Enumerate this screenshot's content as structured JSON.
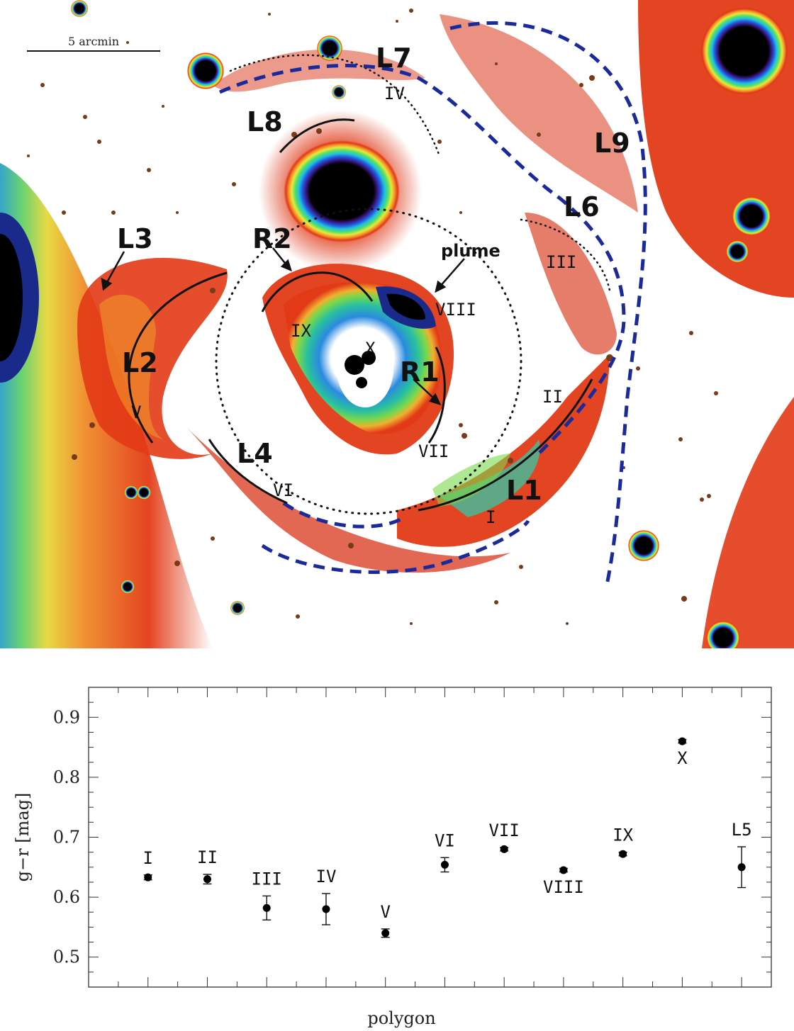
{
  "image": {
    "scalebar_label": "5 arcmin",
    "region_labels": [
      "L7",
      "L8",
      "L9",
      "L6",
      "L3",
      "R2",
      "plume",
      "L2",
      "R1",
      "L4",
      "L1"
    ],
    "polygon_labels": [
      "IV",
      "III",
      "VIII",
      "IX",
      "X",
      "II",
      "V",
      "VII",
      "VI",
      "I"
    ]
  },
  "chart_data": {
    "type": "scatter",
    "xlabel": "polygon",
    "ylabel": "g−r  [mag]",
    "ylim": [
      0.45,
      0.95
    ],
    "yticks": [
      "0.5",
      "0.6",
      "0.7",
      "0.8",
      "0.9"
    ],
    "grid": false,
    "points": [
      {
        "label": "I",
        "x": 1,
        "y": 0.633,
        "err": 0.004,
        "label_pos": "above"
      },
      {
        "label": "II",
        "x": 2,
        "y": 0.63,
        "err": 0.008,
        "label_pos": "above"
      },
      {
        "label": "III",
        "x": 3,
        "y": 0.582,
        "err": 0.02,
        "label_pos": "above"
      },
      {
        "label": "IV",
        "x": 4,
        "y": 0.58,
        "err": 0.026,
        "label_pos": "above"
      },
      {
        "label": "V",
        "x": 5,
        "y": 0.54,
        "err": 0.007,
        "label_pos": "above"
      },
      {
        "label": "VI",
        "x": 6,
        "y": 0.654,
        "err": 0.012,
        "label_pos": "above"
      },
      {
        "label": "VII",
        "x": 7,
        "y": 0.68,
        "err": 0.003,
        "label_pos": "above"
      },
      {
        "label": "VIII",
        "x": 8,
        "y": 0.645,
        "err": 0.003,
        "label_pos": "below"
      },
      {
        "label": "IX",
        "x": 9,
        "y": 0.672,
        "err": 0.003,
        "label_pos": "above"
      },
      {
        "label": "X",
        "x": 10,
        "y": 0.86,
        "err": 0.003,
        "label_pos": "below"
      },
      {
        "label": "L5",
        "x": 11,
        "y": 0.65,
        "err": 0.034,
        "label_pos": "above"
      }
    ]
  }
}
